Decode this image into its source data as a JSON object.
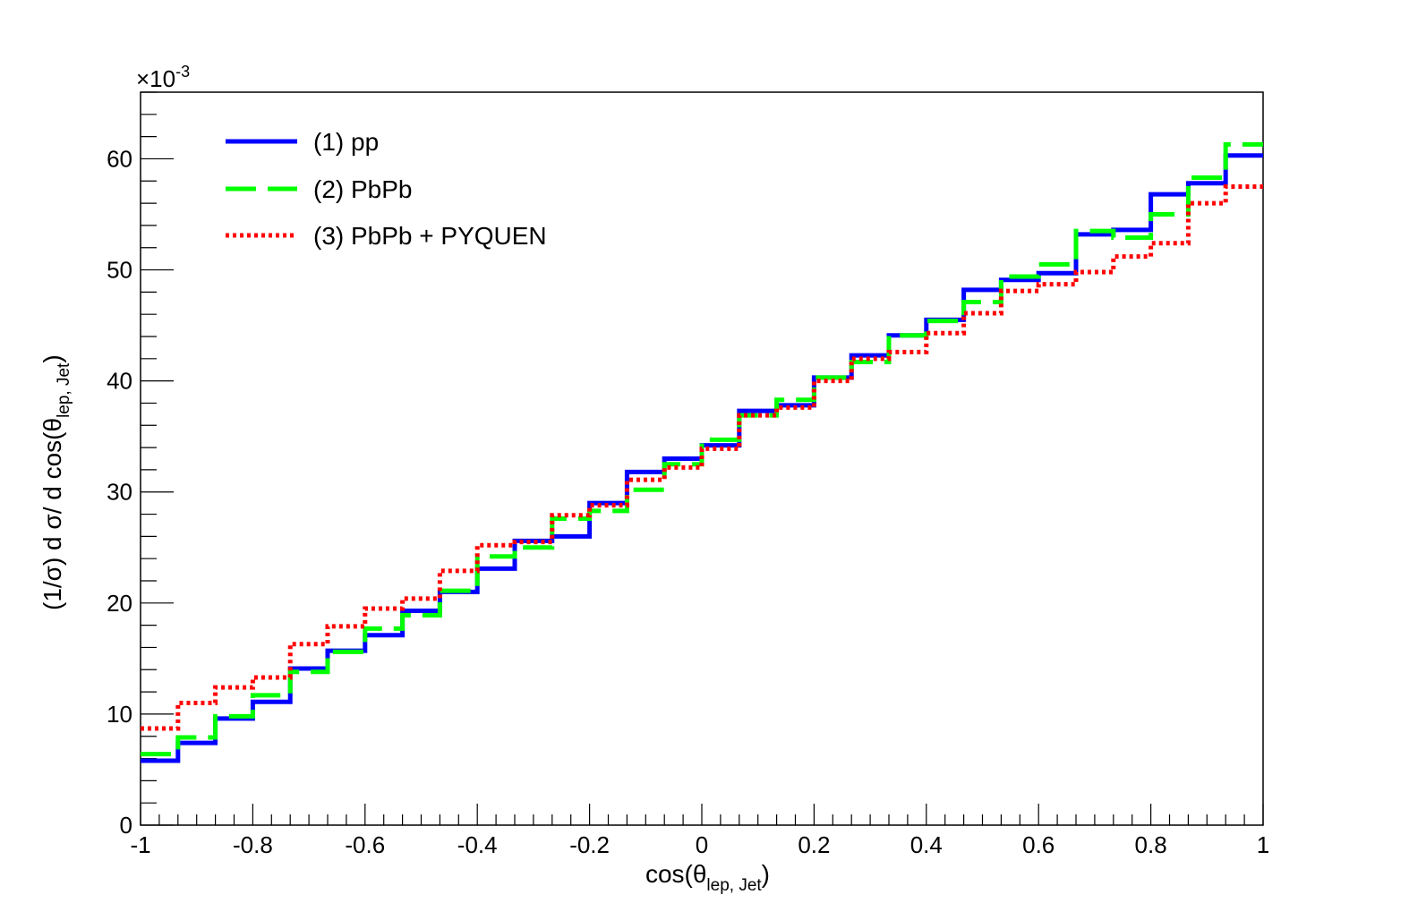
{
  "chart_data": {
    "type": "line",
    "step": true,
    "xlabel_main": "cos(θ",
    "xlabel_sub": "lep, Jet",
    "xlabel_close": ")",
    "ylabel_main": "(1/σ) d σ/ d cos(θ",
    "ylabel_sub": "lep, Jet",
    "ylabel_close": ")",
    "y_multiplier_base": "×10",
    "y_multiplier_exp": "-3",
    "xlim": [
      -1,
      1
    ],
    "ylim": [
      0,
      66
    ],
    "x_ticks": [
      -1,
      -0.8,
      -0.6,
      -0.4,
      -0.2,
      0,
      0.2,
      0.4,
      0.6,
      0.8,
      1
    ],
    "x_tick_labels": [
      "-1",
      "-0.8",
      "-0.6",
      "-0.4",
      "-0.2",
      "0",
      "0.2",
      "0.4",
      "0.6",
      "0.8",
      "1"
    ],
    "y_ticks": [
      0,
      10,
      20,
      30,
      40,
      50,
      60
    ],
    "y_tick_labels": [
      "0",
      "10",
      "20",
      "30",
      "40",
      "50",
      "60"
    ],
    "grid": false,
    "legend_position": "top-left",
    "bin_edges": [
      -1,
      -0.9333,
      -0.8667,
      -0.8,
      -0.7333,
      -0.6667,
      -0.6,
      -0.5333,
      -0.4667,
      -0.4,
      -0.3333,
      -0.2667,
      -0.2,
      -0.1333,
      -0.0667,
      0,
      0.0667,
      0.1333,
      0.2,
      0.2667,
      0.3333,
      0.4,
      0.4667,
      0.5333,
      0.6,
      0.6667,
      0.7333,
      0.8,
      0.8667,
      0.9333,
      1
    ],
    "series": [
      {
        "name": "(1) pp",
        "color": "#0000ff",
        "dash": "solid",
        "values": [
          5.8,
          7.4,
          9.6,
          11.1,
          14.1,
          15.7,
          17.1,
          19.3,
          21.0,
          23.1,
          25.6,
          26.0,
          29.0,
          31.8,
          33.0,
          34.2,
          37.3,
          37.8,
          40.3,
          42.3,
          44.1,
          45.5,
          48.2,
          49.1,
          49.7,
          53.2,
          53.6,
          56.8,
          57.8,
          60.3
        ]
      },
      {
        "name": "(2) PbPb",
        "color": "#00ff00",
        "dash": "dashed",
        "values": [
          6.4,
          7.9,
          9.8,
          11.7,
          13.8,
          15.6,
          17.7,
          18.9,
          21.1,
          24.2,
          25.0,
          27.6,
          28.3,
          30.2,
          32.5,
          34.7,
          36.9,
          38.3,
          40.3,
          41.7,
          44.1,
          45.4,
          47.1,
          49.4,
          50.5,
          53.5,
          52.9,
          55.0,
          58.3,
          61.3
        ]
      },
      {
        "name": "(3) PbPb + PYQUEN",
        "color": "#ff0000",
        "dash": "dotted",
        "values": [
          8.7,
          11.0,
          12.4,
          13.3,
          16.3,
          17.9,
          19.5,
          20.4,
          22.9,
          25.2,
          25.5,
          27.9,
          28.8,
          31.1,
          32.2,
          33.9,
          36.9,
          37.6,
          40.0,
          42.0,
          42.6,
          44.3,
          46.1,
          48.1,
          48.7,
          49.8,
          51.2,
          52.4,
          56.0,
          57.5
        ]
      }
    ]
  }
}
